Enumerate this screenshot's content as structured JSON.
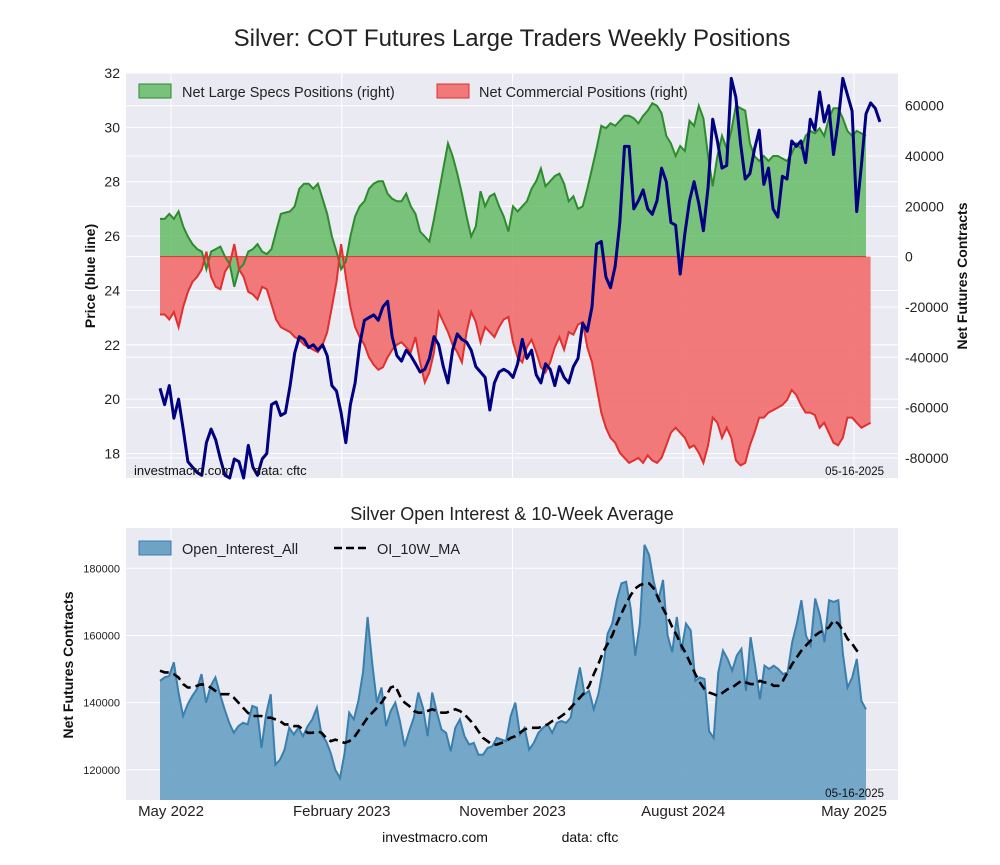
{
  "title": "Silver: COT Futures Large Traders Weekly Positions",
  "colors": {
    "panel_bg": "#eaeaf2",
    "grid": "#ffffff",
    "price": "#000080",
    "specs_fill": "#5cb85c",
    "specs_line": "#2e8b2e",
    "comm_fill": "#f26d6d",
    "comm_line": "#e03030",
    "oi_fill": "#6fa3c6",
    "oi_line": "#3a7fad",
    "ma_line": "#000000"
  },
  "chart_data": [
    {
      "type": "area",
      "title": "Silver: COT Futures Large Traders Weekly Positions",
      "ylabel_left": "Price (blue line)",
      "ylabel_right": "Net Futures Contracts",
      "ylim_left": [
        17.1,
        32
      ],
      "ylim_right": [
        -88000,
        73000
      ],
      "yticks_left": [
        "18",
        "20",
        "22",
        "24",
        "26",
        "28",
        "30",
        "32"
      ],
      "yticks_right": [
        "60000",
        "40000",
        "20000",
        "0",
        "-20000",
        "-40000",
        "-60000",
        "-80000"
      ],
      "legend": [
        "Net Large Specs Positions (right)",
        "Net Commercial Positions (right)"
      ],
      "legend_position": "top-left",
      "grid": true,
      "watermark_left": "investmacro.com      data: cftc",
      "date_label": "05-16-2025",
      "series": [
        {
          "name": "Net Large Specs Positions (right)",
          "axis": "right",
          "values": [
            15000,
            15000,
            17000,
            15000,
            18000,
            12000,
            8000,
            5000,
            3000,
            2000,
            -5000,
            2000,
            3000,
            4000,
            0,
            -3000,
            -12000,
            -5000,
            -3000,
            2000,
            3000,
            5000,
            2000,
            1000,
            3000,
            10000,
            17000,
            17500,
            18000,
            20000,
            27000,
            29000,
            29000,
            27000,
            29000,
            23000,
            17000,
            8000,
            2000,
            -5000,
            -2000,
            8000,
            16000,
            20000,
            22000,
            27000,
            29000,
            30000,
            30000,
            25000,
            23000,
            22000,
            22000,
            25000,
            20000,
            17000,
            10000,
            8000,
            6000,
            15000,
            25000,
            35000,
            45000,
            40000,
            33000,
            25000,
            16000,
            8000,
            12000,
            26000,
            20000,
            24000,
            25000,
            20000,
            16000,
            10000,
            20000,
            18000,
            20000,
            22000,
            27000,
            30000,
            35000,
            28000,
            30000,
            32000,
            33000,
            29000,
            22000,
            24000,
            19000,
            20000,
            27000,
            35000,
            43000,
            52000,
            51000,
            53000,
            52000,
            54000,
            56000,
            56000,
            55000,
            53000,
            56000,
            58000,
            61000,
            60000,
            57000,
            48000,
            45000,
            40000,
            44000,
            42000,
            54000,
            52000,
            60000,
            55000,
            40000,
            28000,
            40000,
            48000,
            43000,
            50000,
            60000,
            59000,
            58000,
            45000,
            40000,
            38000,
            40000,
            38000,
            40000,
            40000,
            39000,
            38000,
            41000,
            45000,
            43000,
            48000,
            50000,
            49000,
            51000,
            48000,
            55000,
            59000,
            59000,
            55000,
            50000,
            48000,
            50000,
            49000,
            48000
          ]
        },
        {
          "name": "Net Commercial Positions (right)",
          "axis": "right",
          "values": [
            -23000,
            -23000,
            -25000,
            -22000,
            -28000,
            -20000,
            -14000,
            -10000,
            -8000,
            -5000,
            2000,
            -8000,
            -12000,
            -13000,
            -6000,
            -3000,
            5000,
            -5000,
            -8000,
            -14000,
            -15000,
            -17000,
            -12000,
            -13000,
            -19000,
            -25000,
            -28000,
            -29000,
            -30000,
            -32000,
            -33000,
            -35000,
            -36000,
            -37000,
            -38000,
            -35000,
            -30000,
            -20000,
            -10000,
            5000,
            -8000,
            -20000,
            -28000,
            -32000,
            -35000,
            -40000,
            -43000,
            -45000,
            -44000,
            -40000,
            -37000,
            -35000,
            -34000,
            -36000,
            -38000,
            -32000,
            -42000,
            -50000,
            -46000,
            -38000,
            -22000,
            -26000,
            -30000,
            -35000,
            -38000,
            -42000,
            -30000,
            -22000,
            -26000,
            -34000,
            -28000,
            -30000,
            -32000,
            -28000,
            -25000,
            -24000,
            -34000,
            -40000,
            -42000,
            -36000,
            -33000,
            -38000,
            -44000,
            -46000,
            -42000,
            -36000,
            -32000,
            -37000,
            -30000,
            -31000,
            -27000,
            -26000,
            -36000,
            -42000,
            -52000,
            -62000,
            -68000,
            -72000,
            -74000,
            -78000,
            -80000,
            -82000,
            -81000,
            -80000,
            -82000,
            -79000,
            -81000,
            -82000,
            -80000,
            -75000,
            -70000,
            -68000,
            -70000,
            -72000,
            -76000,
            -75000,
            -78000,
            -82000,
            -75000,
            -64000,
            -66000,
            -72000,
            -68000,
            -72000,
            -81000,
            -83000,
            -82000,
            -75000,
            -70000,
            -64000,
            -64000,
            -62000,
            -61000,
            -60000,
            -59000,
            -57000,
            -53000,
            -55000,
            -59000,
            -62000,
            -62000,
            -63000,
            -68000,
            -66000,
            -70000,
            -74000,
            -75000,
            -72000,
            -64000,
            -64000,
            -66000,
            -68000,
            -67000,
            -66000
          ]
        },
        {
          "name": "price",
          "axis": "left",
          "values": [
            20.4,
            19.8,
            20.5,
            19.3,
            20,
            18.9,
            17.7,
            17.5,
            17.3,
            17.2,
            18.4,
            18.9,
            18.5,
            17.8,
            17.2,
            16.9,
            17.8,
            17.7,
            16.9,
            18.3,
            17.5,
            17.2,
            17.8,
            18,
            19.8,
            19.9,
            19.4,
            19.5,
            20.5,
            21.7,
            22.3,
            22.2,
            21.9,
            22,
            21.8,
            22,
            21.6,
            20.5,
            20.3,
            19.5,
            18.4,
            19.8,
            20.6,
            22,
            22.9,
            23,
            23.1,
            22.9,
            23.4,
            23.6,
            22.3,
            21.6,
            21.4,
            21.8,
            21.6,
            21.3,
            21,
            21.1,
            21.5,
            22.3,
            22,
            21.2,
            20.6,
            21.8,
            22.4,
            22.2,
            22.1,
            21.8,
            21.2,
            21,
            20.8,
            19.6,
            20.6,
            21,
            21.1,
            21,
            20.8,
            21.3,
            22.2,
            21.5,
            21.8,
            20.9,
            20.6,
            21.3,
            21.1,
            20.5,
            21.2,
            20.8,
            20.6,
            21.2,
            21.5,
            22.8,
            22.5,
            23.4,
            25.7,
            25.8,
            24.5,
            24.1,
            24.9,
            26.5,
            29.3,
            29.3,
            27,
            27.3,
            27.7,
            27,
            26.8,
            27.3,
            28.5,
            28,
            26.5,
            26.4,
            24.6,
            26.1,
            27.3,
            28,
            27.2,
            26.2,
            27.8,
            30.3,
            29.5,
            28.5,
            28.6,
            31.8,
            31.1,
            29.4,
            28.1,
            28.3,
            29.2,
            29.9,
            27.9,
            28.5,
            27,
            26.7,
            28.2,
            28.1,
            29.5,
            29.3,
            29.5,
            28.7,
            30.3,
            29.9,
            31.3,
            30.2,
            30.8,
            29,
            30.2,
            31.8,
            31.2,
            30.6,
            26.9,
            28.6,
            30.5,
            30.9,
            30.7,
            30.2
          ]
        }
      ]
    },
    {
      "type": "area",
      "title": "Silver Open Interest & 10-Week Average",
      "ylabel": "Net Futures Contracts",
      "ylim": [
        111000,
        192000
      ],
      "yticks": [
        "120000",
        "140000",
        "160000",
        "180000"
      ],
      "xticks": [
        "May 2022",
        "February 2023",
        "November 2023",
        "August 2024",
        "May 2025"
      ],
      "legend": [
        "Open_Interest_All",
        "OI_10W_MA"
      ],
      "legend_position": "top-left",
      "grid": true,
      "date_label": "05-16-2025",
      "series": [
        {
          "name": "Open_Interest_All",
          "values": [
            146500,
            147500,
            148000,
            152000,
            143000,
            136000,
            139500,
            142000,
            144000,
            148500,
            140000,
            145000,
            147500,
            142500,
            138000,
            134000,
            131000,
            133000,
            134000,
            133500,
            139000,
            138500,
            126500,
            136500,
            142500,
            121500,
            123000,
            126000,
            132500,
            130500,
            132500,
            130000,
            133000,
            135000,
            138500,
            130500,
            128500,
            125000,
            120000,
            117500,
            125000,
            137000,
            135000,
            140500,
            149000,
            165500,
            151500,
            140000,
            144500,
            133000,
            137500,
            140000,
            134500,
            127000,
            131500,
            135500,
            143000,
            138500,
            130000,
            143000,
            137000,
            132000,
            131000,
            125500,
            132500,
            135000,
            130000,
            127500,
            128000,
            124500,
            124500,
            126500,
            127000,
            129500,
            129000,
            128500,
            136000,
            140000,
            130500,
            132500,
            126000,
            128000,
            131000,
            132500,
            133500,
            131000,
            134000,
            134500,
            134000,
            135500,
            143500,
            150500,
            142500,
            143500,
            138000,
            142500,
            150000,
            160500,
            163500,
            170500,
            175500,
            176000,
            168000,
            154000,
            163500,
            187000,
            184000,
            176000,
            170500,
            176500,
            160000,
            155000,
            165500,
            155500,
            163500,
            161500,
            146500,
            147500,
            147000,
            131500,
            129500,
            149000,
            155500,
            153000,
            149500,
            154000,
            156000,
            143500,
            159500,
            150500,
            141000,
            151000,
            150000,
            151000,
            150000,
            148500,
            149000,
            158000,
            163500,
            170500,
            160000,
            157000,
            171000,
            166000,
            158000,
            170500,
            170000,
            170500,
            154500,
            144500,
            147500,
            153000,
            140500,
            138000
          ]
        },
        {
          "name": "OI_10W_MA",
          "values": [
            149500,
            149000,
            149000,
            148500,
            147500,
            145500,
            144500,
            144500,
            145000,
            145500,
            145000,
            144500,
            143500,
            142500,
            142500,
            142500,
            141500,
            140000,
            138500,
            137000,
            136000,
            136000,
            136000,
            135500,
            135500,
            135000,
            134500,
            133500,
            133500,
            133000,
            133000,
            132000,
            131000,
            131000,
            131500,
            131000,
            129500,
            128500,
            129000,
            128500,
            128000,
            128500,
            129500,
            131500,
            133500,
            135500,
            137000,
            138500,
            140000,
            142000,
            144500,
            145000,
            142000,
            140000,
            139000,
            137500,
            137000,
            137000,
            137500,
            138000,
            137500,
            137000,
            137000,
            137500,
            138000,
            137500,
            136500,
            135000,
            133500,
            131500,
            129500,
            128500,
            127500,
            127500,
            128000,
            128500,
            129500,
            130000,
            131000,
            132000,
            132500,
            132500,
            132500,
            133000,
            133500,
            134500,
            135000,
            136000,
            137000,
            138500,
            140000,
            141500,
            143000,
            145000,
            148500,
            151500,
            155000,
            157500,
            160000,
            163500,
            166500,
            169500,
            172000,
            174000,
            175000,
            175500,
            175500,
            174000,
            171000,
            168000,
            165500,
            162500,
            160000,
            157000,
            154500,
            151500,
            148500,
            146000,
            144000,
            143000,
            142500,
            142000,
            143000,
            144000,
            144500,
            145500,
            146500,
            146000,
            145500,
            145500,
            146500,
            146000,
            146000,
            145000,
            145000,
            146500,
            149000,
            151500,
            153500,
            155500,
            157000,
            158500,
            160000,
            161000,
            161500,
            162500,
            164500,
            163500,
            161500,
            159000,
            157500,
            155500,
            154500
          ]
        }
      ]
    }
  ],
  "footer": {
    "site": "investmacro.com",
    "source": "data: cftc"
  }
}
